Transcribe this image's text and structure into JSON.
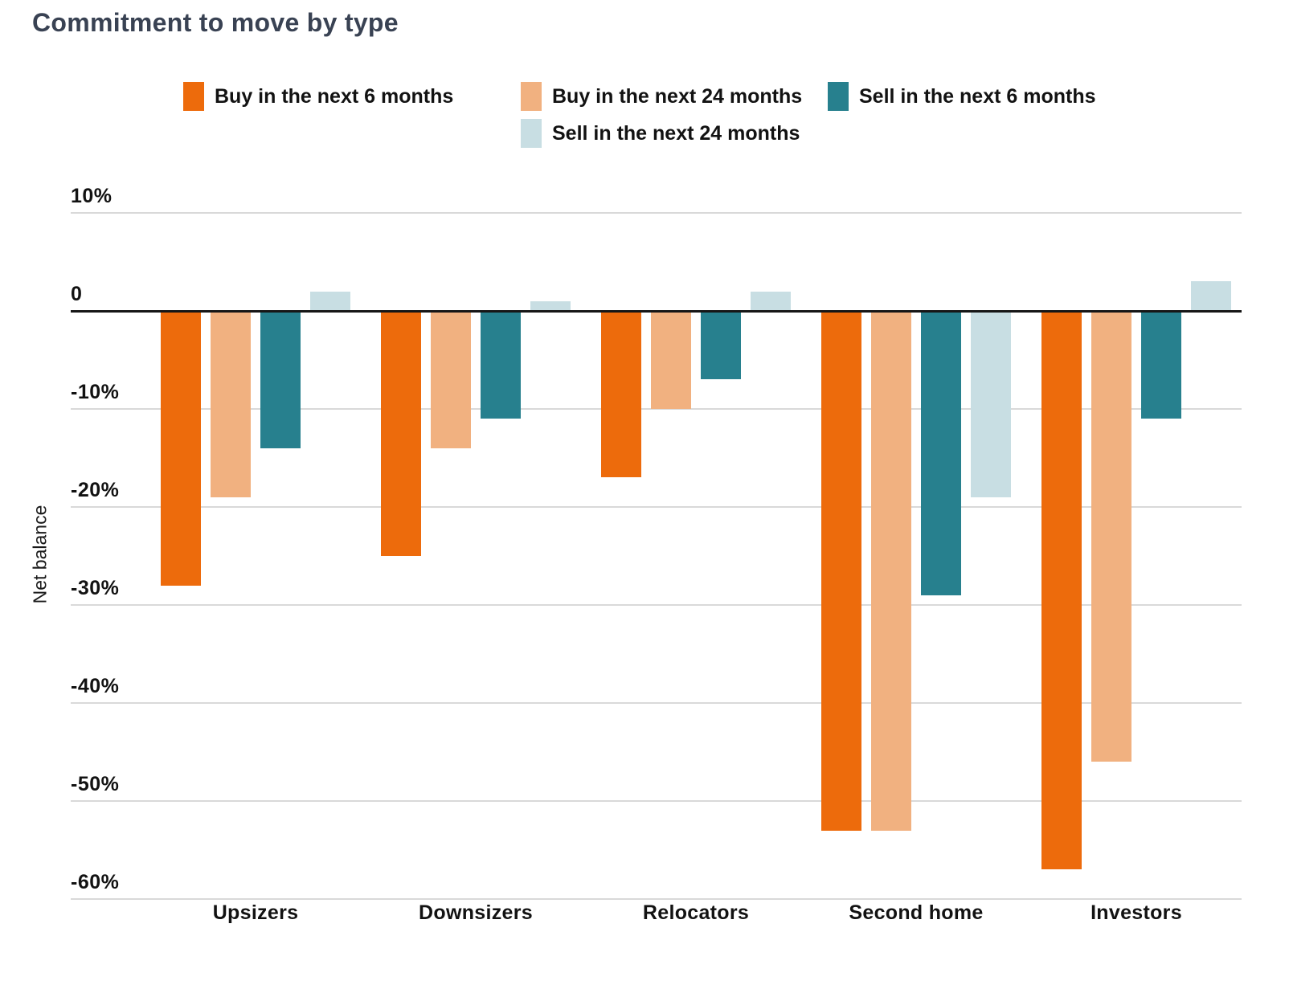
{
  "title": "Commitment to move by type",
  "chart_data": {
    "type": "bar",
    "title": "Commitment to move by type",
    "xlabel": "",
    "ylabel": "Net balance",
    "categories": [
      "Upsizers",
      "Downsizers",
      "Relocators",
      "Second home",
      "Investors"
    ],
    "series": [
      {
        "name": "Buy in the next 6 months",
        "color": "#ED6B0C",
        "values": [
          -28,
          -25,
          -17,
          -53,
          -57
        ]
      },
      {
        "name": "Buy in the next 24 months",
        "color": "#F1B180",
        "values": [
          -19,
          -14,
          -10,
          -53,
          -46
        ]
      },
      {
        "name": "Sell in the next 6 months",
        "color": "#27808E",
        "values": [
          -14,
          -11,
          -7,
          -29,
          -11
        ]
      },
      {
        "name": "Sell in the next 24 months",
        "color": "#C8DEE3",
        "values": [
          2,
          1,
          2,
          -19,
          3
        ]
      }
    ],
    "ylim": [
      -60,
      10
    ],
    "yticks": [
      {
        "value": 10,
        "label": "10%"
      },
      {
        "value": 0,
        "label": "0"
      },
      {
        "value": -10,
        "label": "-10%"
      },
      {
        "value": -20,
        "label": "-20%"
      },
      {
        "value": -30,
        "label": "-30%"
      },
      {
        "value": -40,
        "label": "-40%"
      },
      {
        "value": -50,
        "label": "-50%"
      },
      {
        "value": -60,
        "label": "-60%"
      }
    ],
    "grid": true,
    "legend_position": "top",
    "colors": {
      "title_text": "#394253",
      "axis_text": "#121212",
      "gridline": "#D9D9D9",
      "zero_line": "#161616",
      "background": "#FFFFFF"
    }
  }
}
